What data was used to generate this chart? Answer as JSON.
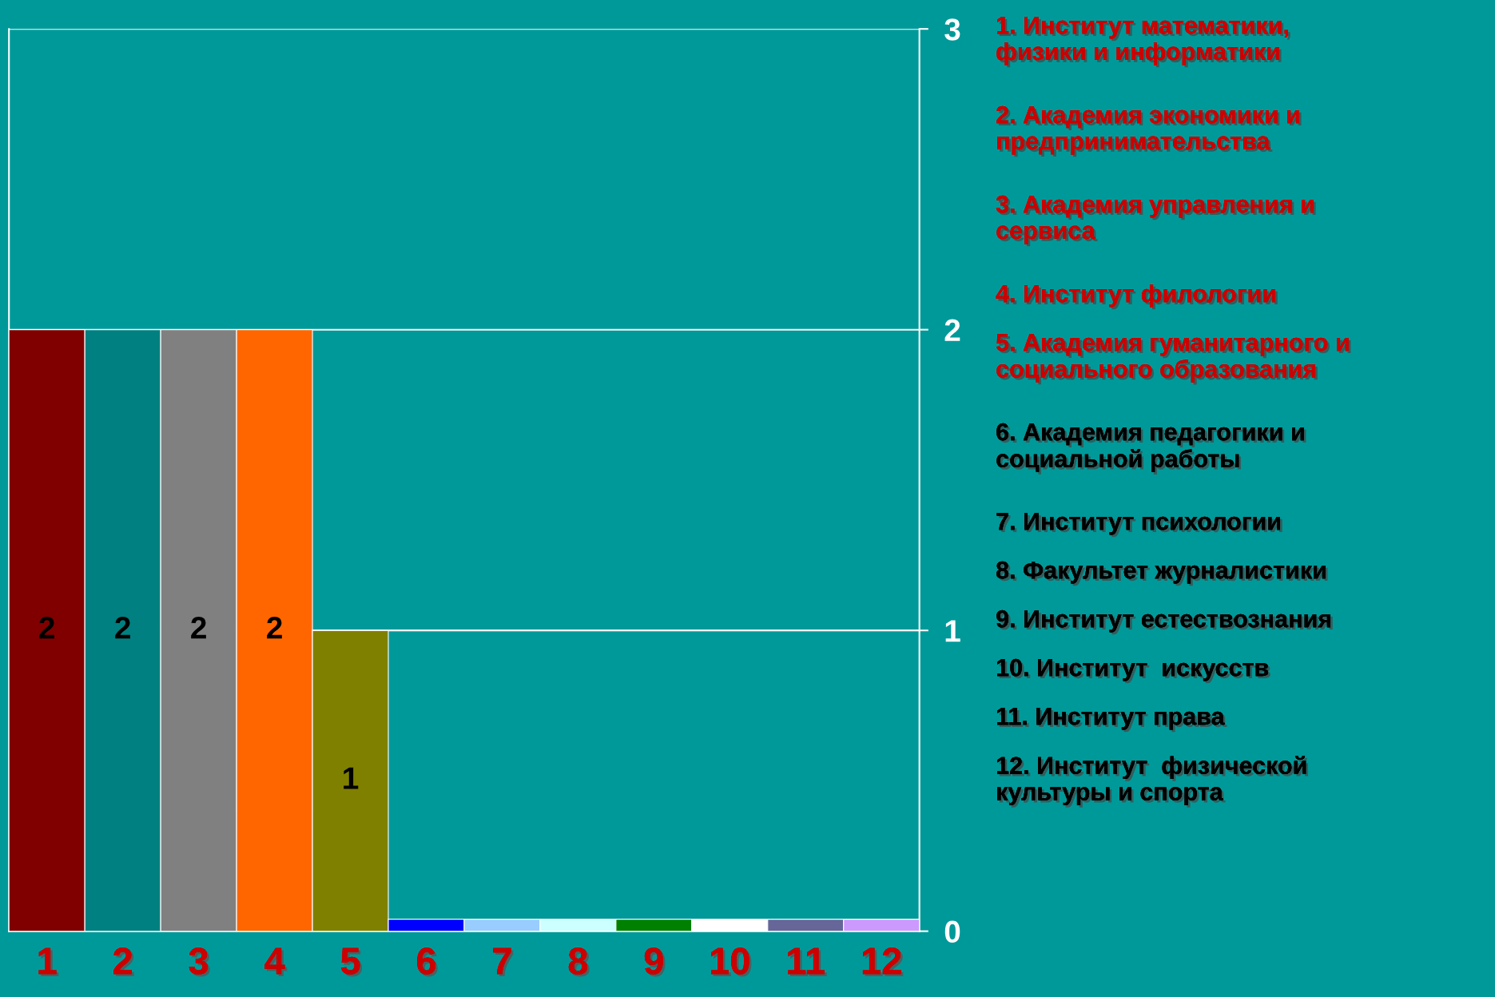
{
  "chart_data": {
    "type": "bar",
    "categories": [
      "1",
      "2",
      "3",
      "4",
      "5",
      "6",
      "7",
      "8",
      "9",
      "10",
      "11",
      "12"
    ],
    "values": [
      2,
      2,
      2,
      2,
      1,
      0.04,
      0.04,
      0.04,
      0.04,
      0.04,
      0.04,
      0.04
    ],
    "colors": [
      "#800000",
      "#008080",
      "#808080",
      "#ff6600",
      "#808000",
      "#0000ff",
      "#99ccff",
      "#ccffff",
      "#008000",
      "#ffffff",
      "#666699",
      "#cc99ff"
    ],
    "value_labels": [
      "2",
      "2",
      "2",
      "2",
      "1",
      null,
      null,
      null,
      null,
      null,
      null,
      null
    ],
    "ylim": [
      0,
      3
    ],
    "yticks": [
      0,
      1,
      2,
      3
    ],
    "grid": "y",
    "annotations": [
      "1. Институт математики,\nфизики и информатики",
      "2. Академия экономики и\nпредпринимательства",
      "3. Академия управления и\nсервиса",
      "4. Институт филологии",
      "5. Академия гуманитарного и\nсоциального образования",
      "6. Академия педагогики и\nсоциальной работы",
      "7. Институт психологии",
      "8. Факультет журналистики",
      "9. Институт естествознания",
      "10. Институт  искусств",
      "11. Институт права",
      "12. Институт  физической\nкультуры и спорта"
    ]
  }
}
